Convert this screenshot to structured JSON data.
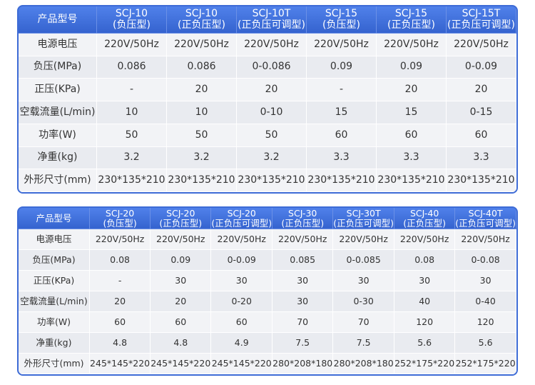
{
  "tables": [
    {
      "header": {
        "label": "产品型号",
        "models": [
          {
            "model": "SCJ-10",
            "type": "(负压型)"
          },
          {
            "model": "SCJ-10",
            "type": "(正负压型)"
          },
          {
            "model": "SCJ-10T",
            "type": "(正负压可调型)"
          },
          {
            "model": "SCJ-15",
            "type": "(负压型)"
          },
          {
            "model": "SCJ-15",
            "type": "(正负压型)"
          },
          {
            "model": "SCJ-15T",
            "type": "(正负压可调型)"
          }
        ]
      },
      "rows": [
        [
          "电源电压",
          "220V/50Hz",
          "220V/50Hz",
          "220V/50Hz",
          "220V/50Hz",
          "220V/50Hz",
          "220V/50Hz"
        ],
        [
          "负压(MPa)",
          "0.086",
          "0.086",
          "0-0.086",
          "0.09",
          "0.09",
          "0-0.09"
        ],
        [
          "正压(KPa)",
          "-",
          "20",
          "20",
          "-",
          "20",
          "20"
        ],
        [
          "空载流量(L/min)",
          "10",
          "10",
          "0-10",
          "15",
          "15",
          "0-15"
        ],
        [
          "功率(W)",
          "50",
          "50",
          "50",
          "60",
          "60",
          "60"
        ],
        [
          "净重(kg)",
          "3.2",
          "3.2",
          "3.2",
          "3.3",
          "3.3",
          "3.3"
        ],
        [
          "外形尺寸(mm)",
          "230*135*210",
          "230*135*210",
          "230*135*210",
          "230*135*210",
          "230*135*210",
          "230*135*210"
        ]
      ]
    },
    {
      "header": {
        "label": "产品型号",
        "models": [
          {
            "model": "SCJ-20",
            "type": "(负压型)"
          },
          {
            "model": "SCJ-20",
            "type": "(正负压型)"
          },
          {
            "model": "SCJ-20",
            "type": "(正负压可调型)"
          },
          {
            "model": "SCJ-30",
            "type": "(正负压型)"
          },
          {
            "model": "SCJ-30T",
            "type": "(正负压可调型)"
          },
          {
            "model": "SCJ-40",
            "type": "(正负压型)"
          },
          {
            "model": "SCJ-40T",
            "type": "(正负压可调型)"
          }
        ]
      },
      "rows": [
        [
          "电源电压",
          "220V/50Hz",
          "220V/50Hz",
          "220V/50Hz",
          "220V/50Hz",
          "220V/50Hz",
          "220V/50Hz",
          "220V/50Hz"
        ],
        [
          "负压(MPa)",
          "0.08",
          "0.09",
          "0-0.09",
          "0.085",
          "0-0.085",
          "0.08",
          "0-0.08"
        ],
        [
          "正压(KPa)",
          "-",
          "30",
          "30",
          "30",
          "30",
          "30",
          "30"
        ],
        [
          "空载流量(L/min)",
          "20",
          "20",
          "0-20",
          "30",
          "0-30",
          "40",
          "0-40"
        ],
        [
          "功率(W)",
          "60",
          "60",
          "60",
          "70",
          "70",
          "120",
          "120"
        ],
        [
          "净重(kg)",
          "4.8",
          "4.8",
          "4.9",
          "7.5",
          "7.5",
          "5.6",
          "5.6"
        ],
        [
          "外形尺寸(mm)",
          "245*145*220",
          "245*145*220",
          "245*145*220",
          "280*208*180",
          "280*208*180",
          "252*175*220",
          "252*175*220"
        ]
      ]
    }
  ]
}
